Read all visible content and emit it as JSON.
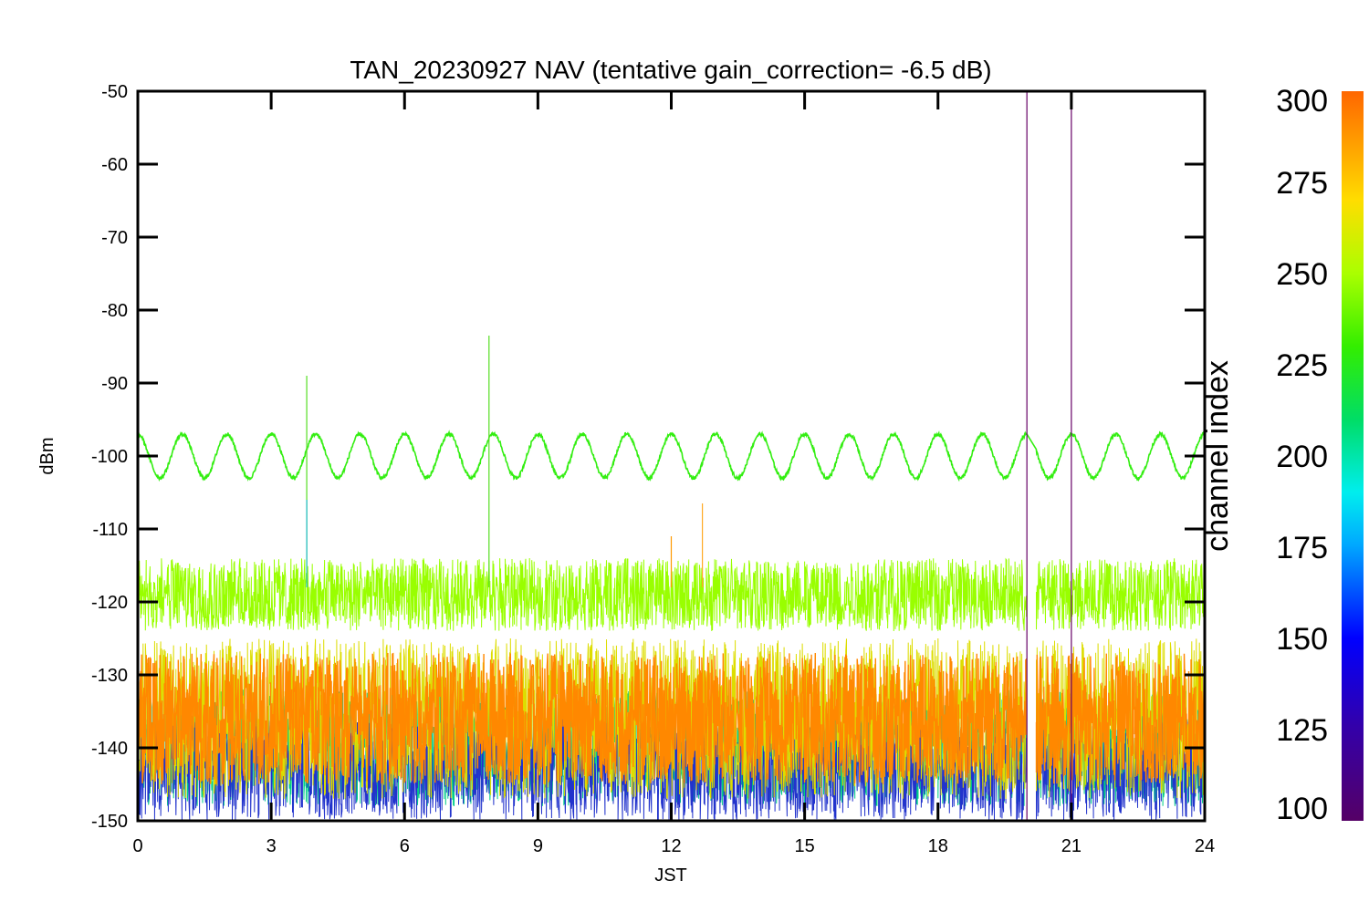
{
  "chart_data": {
    "type": "line",
    "title": "TAN_20230927 NAV (tentative gain_correction= -6.5 dB)",
    "xlabel": "JST",
    "ylabel": "dBm",
    "xlim": [
      0,
      24
    ],
    "ylim": [
      -150,
      -50
    ],
    "xticks": [
      "0",
      "3",
      "6",
      "9",
      "12",
      "15",
      "18",
      "21",
      "24"
    ],
    "yticks": [
      "-50",
      "-60",
      "-70",
      "-80",
      "-90",
      "-100",
      "-110",
      "-120",
      "-130",
      "-140",
      "-150"
    ],
    "colorbar": {
      "title": "channel index",
      "range": [
        100,
        300
      ],
      "ticks": [
        "300",
        "275",
        "250",
        "225",
        "200",
        "175",
        "150",
        "125",
        "100"
      ],
      "colormap": "rainbow (purple-blue-cyan-green-yellow-orange)"
    },
    "grid": false,
    "data_gap": {
      "x_start": 20.0,
      "x_end": 20.2
    },
    "series": [
      {
        "channel": 240,
        "color": "#33ee11",
        "description_values": "sinusoidal oscillation",
        "center": -100,
        "amplitude": 3,
        "period_hours": 1.0,
        "x": [
          0,
          0.25,
          0.5,
          0.75,
          1.0,
          1.25,
          1.5,
          1.75,
          2.0,
          2.25,
          2.5,
          2.75,
          3.0,
          3.25,
          3.5,
          3.75,
          4.0,
          4.25,
          4.5,
          4.75,
          5.0,
          5.25,
          5.5,
          5.75,
          6.0,
          6.25,
          6.5,
          6.75,
          7.0,
          7.25,
          7.5,
          7.75,
          8.0,
          8.25,
          8.5,
          8.75,
          9.0,
          9.25,
          9.5,
          9.75,
          10.0,
          10.25,
          10.5,
          10.75,
          11.0,
          11.25,
          11.5,
          11.75,
          12.0,
          12.25,
          12.5,
          12.75,
          13.0,
          13.25,
          13.5,
          13.75,
          14.0,
          14.25,
          14.5,
          14.75,
          15.0,
          15.25,
          15.5,
          15.75,
          16.0,
          16.25,
          16.5,
          16.75,
          17.0,
          17.25,
          17.5,
          17.75,
          18.0,
          18.25,
          18.5,
          18.75,
          19.0,
          19.25,
          19.5,
          19.75,
          20.0,
          20.25,
          20.5,
          20.75,
          21.0,
          21.25,
          21.5,
          21.75,
          22.0,
          22.25,
          22.5,
          22.75,
          23.0,
          23.25,
          23.5,
          23.75,
          24.0
        ],
        "y": [
          -99,
          -97,
          -97,
          -100,
          -103,
          -100,
          -97,
          -100,
          -103,
          -100,
          -97,
          -100,
          -103,
          -100,
          -97,
          -100,
          -103,
          -100,
          -97,
          -100,
          -103,
          -100,
          -97,
          -100,
          -103,
          -100,
          -97,
          -100,
          -103,
          -100,
          -97,
          -100,
          -103,
          -100,
          -96,
          -100,
          -103,
          -100,
          -97,
          -100,
          -103,
          -100,
          -97,
          -100,
          -103,
          -100,
          -97,
          -100,
          -103,
          -100,
          -97,
          -100,
          -103,
          -100,
          -96,
          -100,
          -103,
          -100,
          -97,
          -100,
          -103,
          -100,
          -97,
          -100,
          -103,
          -100,
          -97,
          -100,
          -103,
          -100,
          -97,
          -100,
          -103,
          -100,
          -97,
          -100,
          -103,
          -100,
          -97,
          -100,
          -103,
          -100,
          -97,
          -100,
          -103,
          -100,
          -97,
          -100,
          -103,
          -100,
          -97,
          -100,
          -103,
          -100,
          -97,
          -100,
          -97
        ]
      },
      {
        "channel": 255,
        "color": "#99ff00",
        "band_center": -119,
        "band_spread": [
          -124,
          -114
        ]
      },
      {
        "channel": 285,
        "color": "#ff8800",
        "band_center": -136,
        "band_spread": [
          -145,
          -127
        ]
      },
      {
        "channel": 265,
        "color": "#dddd00",
        "band_center": -135,
        "band_spread": [
          -147,
          -125
        ]
      },
      {
        "channel": 200,
        "color": "#00cc88",
        "band_center": -140,
        "band_spread": [
          -148,
          -132
        ]
      },
      {
        "channel": 140,
        "color": "#2233cc",
        "band_center": -142,
        "band_spread": [
          -150,
          -136
        ]
      }
    ],
    "spikes": [
      {
        "x": 3.8,
        "y_top": -89,
        "color": "#55dd22"
      },
      {
        "x": 3.8,
        "y_top": -106,
        "color": "#22bbcc"
      },
      {
        "x": 7.9,
        "y_top": -83.5,
        "color": "#55dd22"
      },
      {
        "x": 12.0,
        "y_top": -111,
        "color": "#ff9900"
      },
      {
        "x": 12.7,
        "y_top": -106.5,
        "color": "#ffaa22"
      },
      {
        "x": 20.0,
        "y_top": -50,
        "color": "#660066"
      },
      {
        "x": 21.0,
        "y_top": -51.5,
        "color": "#660066"
      }
    ]
  }
}
